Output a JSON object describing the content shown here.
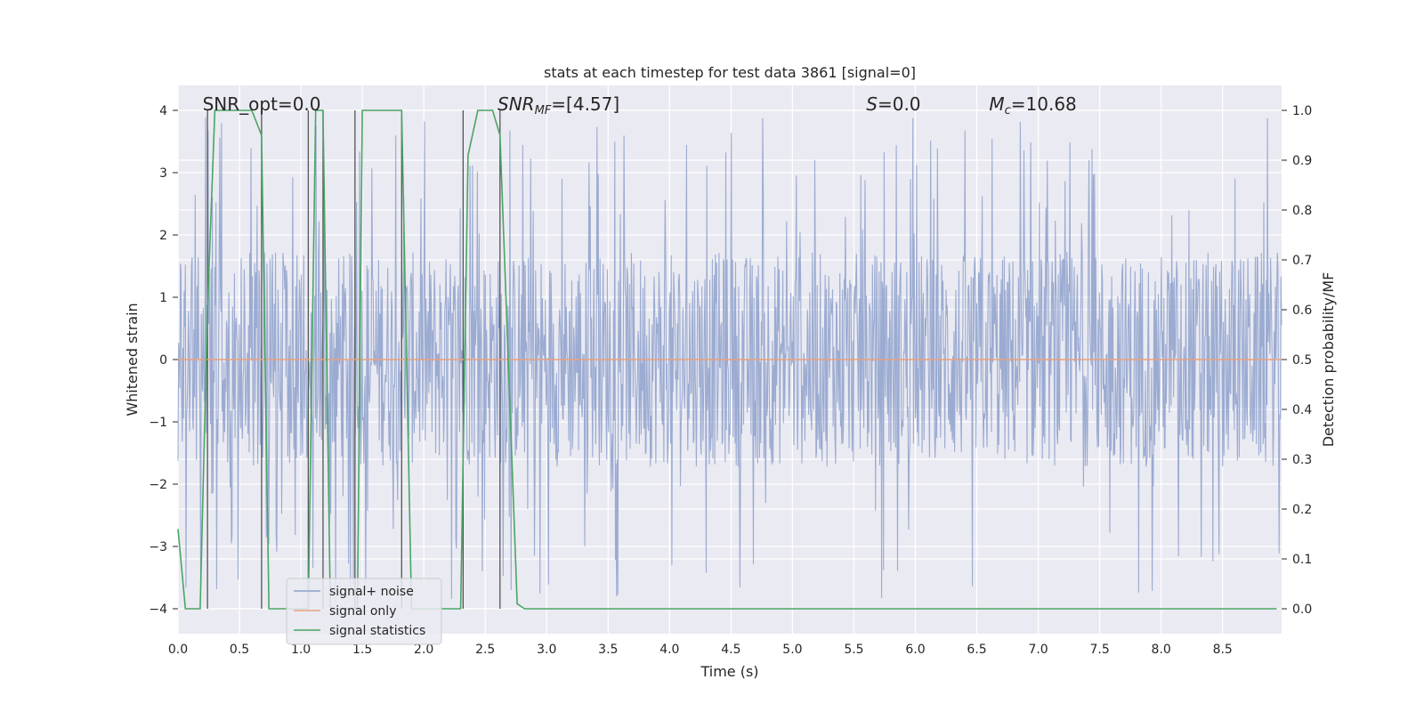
{
  "chart_data": {
    "type": "line",
    "title": "stats at each timestep for test data 3861 [signal=0]",
    "xlabel": "Time (s)",
    "ylabel": "Whitened strain",
    "y2label": "Detection probability/MF",
    "xlim": [
      0.0,
      8.98
    ],
    "ylim": [
      -4.4,
      4.4
    ],
    "y2lim": [
      -0.05,
      1.05
    ],
    "xticks": [
      "0.0",
      "0.5",
      "1.0",
      "1.5",
      "2.0",
      "2.5",
      "3.0",
      "3.5",
      "4.0",
      "4.5",
      "5.0",
      "5.5",
      "6.0",
      "6.5",
      "7.0",
      "7.5",
      "8.0",
      "8.5"
    ],
    "yticks": [
      "−4",
      "−3",
      "−2",
      "−1",
      "0",
      "1",
      "2",
      "3",
      "4"
    ],
    "y2ticks": [
      "0.0",
      "0.1",
      "0.2",
      "0.3",
      "0.4",
      "0.5",
      "0.6",
      "0.7",
      "0.8",
      "0.9",
      "1.0"
    ],
    "grid": true,
    "legend_position": "lower-left",
    "annotations": [
      {
        "text": "SNR_opt=0.0",
        "x": 0.2
      },
      {
        "text": "SNR",
        "sub": "MF",
        "suffix": "=[4.57]",
        "x": 2.6
      },
      {
        "text": "S",
        "sub": "",
        "suffix": "=0.0",
        "x": 5.6
      },
      {
        "text": "M",
        "sub": "c",
        "suffix": "=10.68",
        "x": 6.6
      }
    ],
    "vertical_markers": [
      0.24,
      0.68,
      1.06,
      1.18,
      1.44,
      1.82,
      2.32,
      2.62
    ],
    "series": [
      {
        "name": "signal+ noise",
        "color": "#8da0cb",
        "description_envelope": {
          "typical_amplitude": 1.5,
          "max_positive": 3.95,
          "max_negative": -4.0
        }
      },
      {
        "name": "signal only",
        "color": "#e8a07c",
        "x": [
          0.0,
          8.98
        ],
        "y": [
          0.0,
          0.0
        ]
      },
      {
        "name": "signal statistics",
        "color": "#4aa564",
        "axis": "right",
        "x": [
          0.0,
          0.06,
          0.18,
          0.24,
          0.3,
          0.6,
          0.68,
          0.74,
          0.9,
          1.06,
          1.12,
          1.18,
          1.24,
          1.4,
          1.46,
          1.5,
          1.82,
          1.9,
          2.3,
          2.36,
          2.44,
          2.56,
          2.62,
          2.76,
          2.82,
          8.94
        ],
        "y": [
          0.16,
          0.0,
          0.0,
          0.6,
          1.0,
          1.0,
          0.95,
          0.0,
          0.0,
          0.0,
          1.0,
          1.0,
          0.0,
          0.0,
          0.0,
          1.0,
          1.0,
          0.0,
          0.0,
          0.91,
          1.0,
          1.0,
          0.95,
          0.01,
          0.0,
          0.0
        ]
      }
    ]
  }
}
